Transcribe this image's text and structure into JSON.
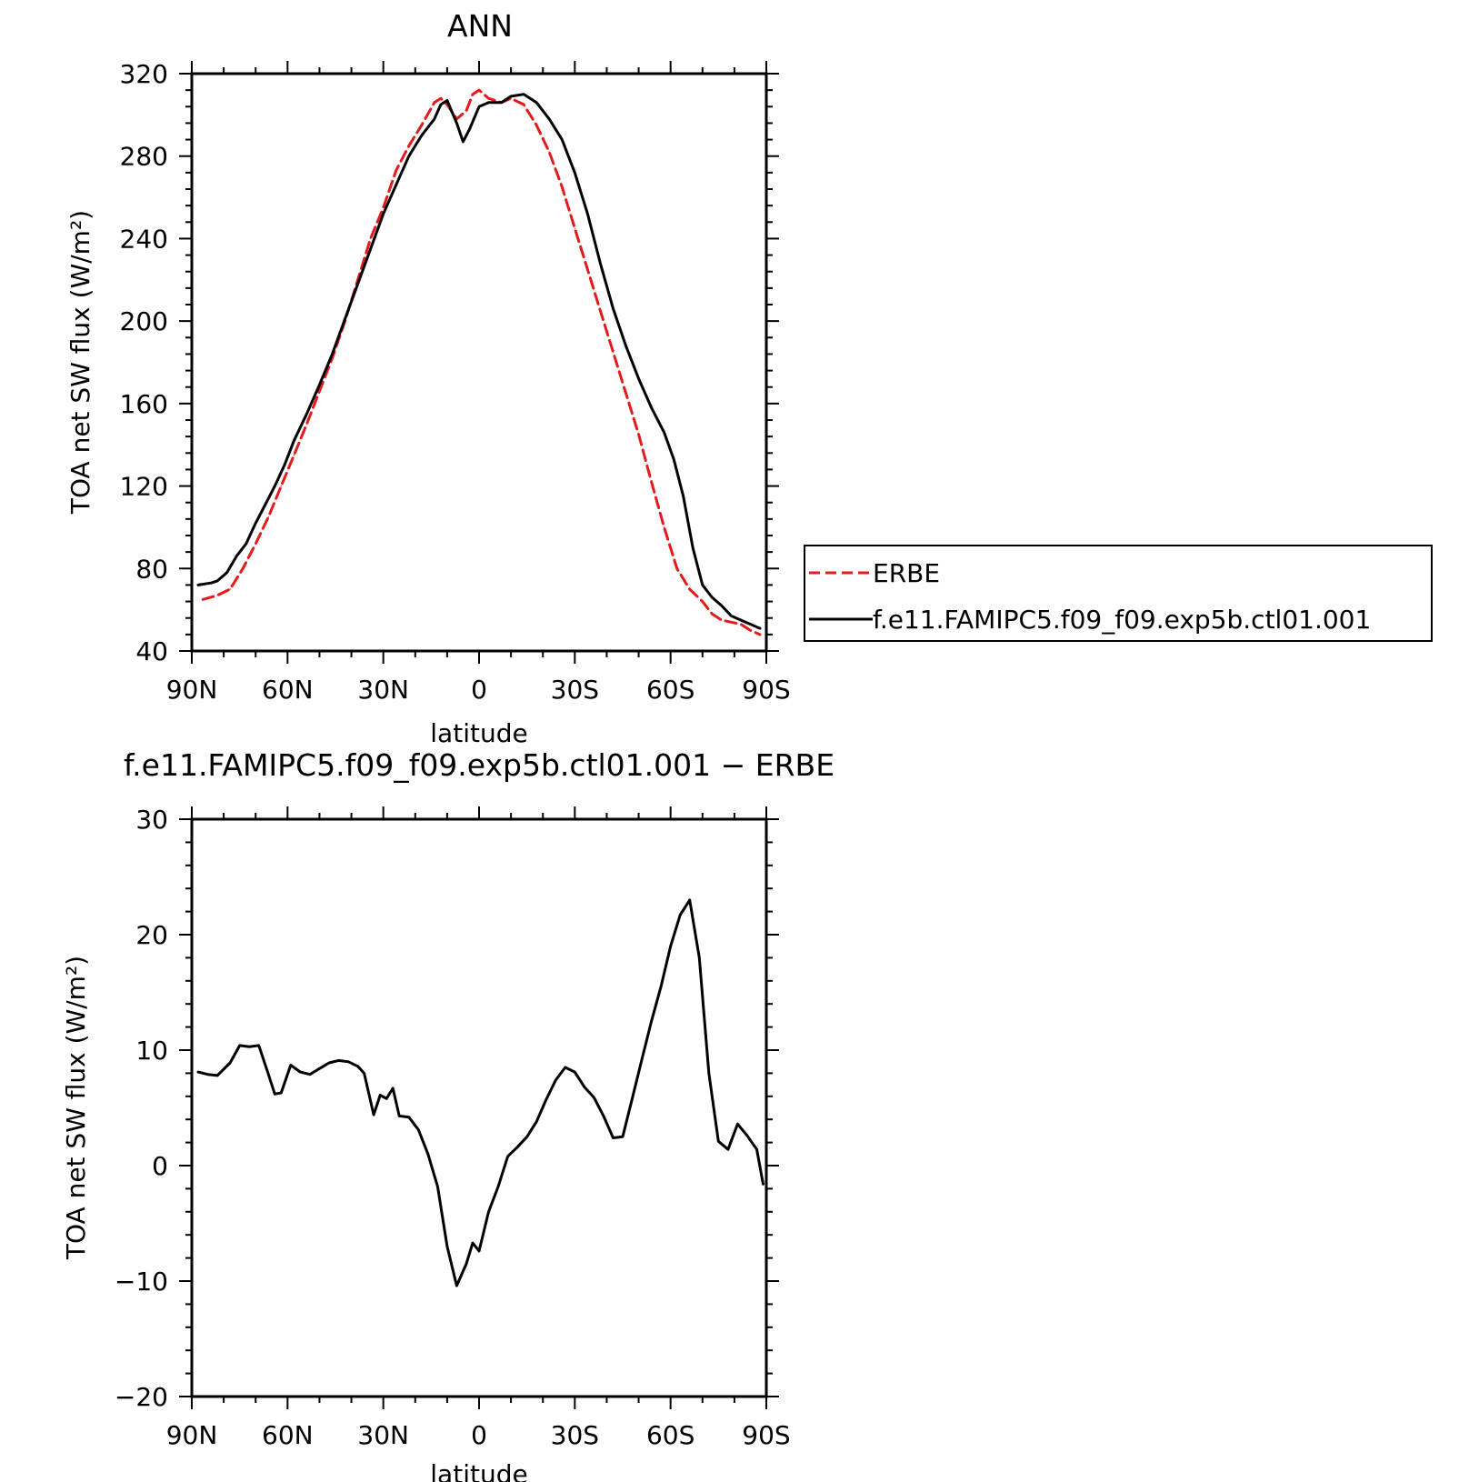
{
  "chart_data": [
    {
      "type": "line",
      "title": "ANN",
      "xlabel": "latitude",
      "ylabel": "TOA net SW flux (W/m²)",
      "xlim": [
        90,
        -90
      ],
      "ylim": [
        40,
        320
      ],
      "yticks": [
        40,
        80,
        120,
        160,
        200,
        240,
        280,
        320
      ],
      "xticks": [
        {
          "value": 90,
          "label": "90N"
        },
        {
          "value": 60,
          "label": "60N"
        },
        {
          "value": 30,
          "label": "30N"
        },
        {
          "value": 0,
          "label": "0"
        },
        {
          "value": -30,
          "label": "30S"
        },
        {
          "value": -60,
          "label": "60S"
        },
        {
          "value": -90,
          "label": "90S"
        }
      ],
      "legend": {
        "placement": "right",
        "entries": [
          "ERBE",
          "f.e11.FAMIPC5.f09_f09.exp5b.ctl01.001"
        ]
      },
      "series": [
        {
          "name": "ERBE",
          "color": "#e41a1c",
          "style": "dashed",
          "x": [
            86.5,
            82,
            78,
            74,
            70,
            66,
            62,
            58,
            54,
            50,
            46,
            42,
            38,
            34,
            30,
            26,
            22,
            18,
            14,
            12,
            10,
            7,
            4,
            2,
            0,
            -3,
            -7,
            -10,
            -14,
            -18,
            -22,
            -26,
            -30,
            -34,
            -38,
            -42,
            -46,
            -50,
            -54,
            -58,
            -62,
            -66,
            -70,
            -73,
            -76,
            -79,
            -82,
            -85,
            -88
          ],
          "y": [
            65,
            67,
            70,
            80,
            92,
            105,
            120,
            135,
            150,
            166,
            182,
            200,
            220,
            240,
            255,
            273,
            285,
            295,
            306,
            308,
            305,
            298,
            302,
            310,
            312,
            308,
            306,
            308,
            305,
            295,
            282,
            265,
            245,
            225,
            205,
            185,
            165,
            145,
            122,
            100,
            80,
            70,
            64,
            58,
            55,
            54,
            53,
            50,
            48
          ]
        },
        {
          "name": "f.e11.FAMIPC5.f09_f09.exp5b.ctl01.001",
          "color": "#000000",
          "style": "solid",
          "x": [
            88,
            84,
            82,
            79,
            76,
            73,
            70,
            67,
            64,
            61,
            58,
            54,
            50,
            46,
            42,
            38,
            34,
            30,
            26,
            22,
            18,
            14,
            12,
            10,
            7,
            5,
            3,
            0,
            -3,
            -7,
            -10,
            -14,
            -18,
            -22,
            -26,
            -30,
            -34,
            -38,
            -42,
            -46,
            -50,
            -54,
            -58,
            -61,
            -64,
            -67,
            -70,
            -73,
            -76,
            -79,
            -82,
            -85,
            -88
          ],
          "y": [
            72,
            73,
            74,
            78,
            86,
            92,
            102,
            111,
            120,
            130,
            142,
            155,
            169,
            184,
            201,
            218,
            235,
            252,
            266,
            280,
            290,
            298,
            305,
            307,
            296,
            287,
            293,
            304,
            306,
            306,
            309,
            310,
            306,
            298,
            288,
            272,
            252,
            228,
            206,
            188,
            172,
            158,
            146,
            133,
            115,
            90,
            72,
            66,
            62,
            57,
            55,
            53,
            51
          ]
        }
      ]
    },
    {
      "type": "line",
      "title": "f.e11.FAMIPC5.f09_f09.exp5b.ctl01.001 − ERBE",
      "xlabel": "latitude",
      "ylabel": "TOA net SW flux (W/m²)",
      "xlim": [
        90,
        -90
      ],
      "ylim": [
        -20,
        30
      ],
      "yticks": [
        -20,
        -10,
        0,
        10,
        20,
        30
      ],
      "ytick_labels": [
        "−20",
        "−10",
        "0",
        "10",
        "20",
        "30"
      ],
      "xticks": [
        {
          "value": 90,
          "label": "90N"
        },
        {
          "value": 60,
          "label": "60N"
        },
        {
          "value": 30,
          "label": "30N"
        },
        {
          "value": 0,
          "label": "0"
        },
        {
          "value": -30,
          "label": "30S"
        },
        {
          "value": -60,
          "label": "60S"
        },
        {
          "value": -90,
          "label": "90S"
        }
      ],
      "series": [
        {
          "color": "#000000",
          "style": "solid",
          "x": [
            88,
            85,
            82,
            78,
            75,
            72,
            69,
            66,
            64,
            62,
            59,
            56,
            53,
            50,
            47,
            44,
            41,
            38,
            36,
            33,
            31,
            29,
            27,
            25,
            22,
            19,
            16,
            13,
            10,
            7,
            4,
            2,
            0,
            -3,
            -6,
            -9,
            -12,
            -15,
            -18,
            -21,
            -24,
            -27,
            -30,
            -33,
            -36,
            -39,
            -42,
            -45,
            -48,
            -51,
            -54,
            -57,
            -60,
            -63,
            -66,
            -69,
            -72,
            -75,
            -78,
            -81,
            -84,
            -87,
            -89
          ],
          "y": [
            8.1,
            7.9,
            7.8,
            8.9,
            10.4,
            10.3,
            10.4,
            7.9,
            6.2,
            6.3,
            8.7,
            8.1,
            7.9,
            8.4,
            8.9,
            9.1,
            9.0,
            8.6,
            8.0,
            4.4,
            6.1,
            5.8,
            6.7,
            4.3,
            4.2,
            3.1,
            1.0,
            -1.8,
            -7.0,
            -10.4,
            -8.5,
            -6.7,
            -7.4,
            -4.0,
            -1.8,
            0.8,
            1.6,
            2.5,
            3.8,
            5.7,
            7.4,
            8.5,
            8.1,
            6.8,
            5.9,
            4.3,
            2.4,
            2.5,
            5.8,
            9.2,
            12.5,
            15.5,
            19.0,
            21.7,
            23.0,
            18.0,
            8.0,
            2.1,
            1.4,
            3.6,
            2.6,
            1.4,
            -1.6
          ]
        }
      ]
    }
  ]
}
